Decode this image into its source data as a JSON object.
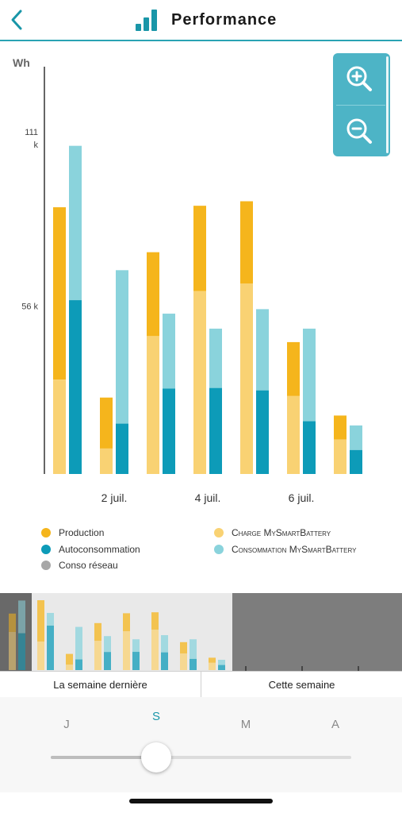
{
  "header": {
    "title": "Performance"
  },
  "colors": {
    "production": "#f5b51c",
    "charge": "#f9d273",
    "autoconsommation": "#0d9bb8",
    "consommation": "#8ad3dc",
    "reseau": "#a7a7a7",
    "accent": "#2aa3b3"
  },
  "chart_data": {
    "type": "bar",
    "stacked": true,
    "unit_label": "Wh",
    "y_ticks": [
      {
        "value": 56000,
        "label": "56 k"
      },
      {
        "value": 111000,
        "label": "111\nk"
      }
    ],
    "ylim": [
      0,
      111000
    ],
    "x_tick_labels": [
      {
        "index": 1,
        "label": "2 juil."
      },
      {
        "index": 3,
        "label": "4 juil."
      },
      {
        "index": 5,
        "label": "6 juil."
      }
    ],
    "days": [
      {
        "production": 89000,
        "charge": 31500,
        "conso_total": 109500,
        "autoconsommation": 58000
      },
      {
        "production": 25500,
        "charge": 8500,
        "conso_total": 68000,
        "autoconsommation": 16800
      },
      {
        "production": 74000,
        "charge": 46000,
        "conso_total": 53500,
        "autoconsommation": 28500
      },
      {
        "production": 89500,
        "charge": 61000,
        "conso_total": 48500,
        "autoconsommation": 28700
      },
      {
        "production": 91000,
        "charge": 63500,
        "conso_total": 55000,
        "autoconsommation": 27900
      },
      {
        "production": 44000,
        "charge": 26000,
        "conso_total": 48500,
        "autoconsommation": 17600
      },
      {
        "production": 19500,
        "charge": 11500,
        "conso_total": 16200,
        "autoconsommation": 8000
      }
    ],
    "legend": [
      {
        "key": "production",
        "label": "Production"
      },
      {
        "key": "charge",
        "label": "Charge MySmartBattery"
      },
      {
        "key": "autoconsommation",
        "label": "Autoconsommation"
      },
      {
        "key": "consommation",
        "label": "Consommation MySmartBattery"
      },
      {
        "key": "reseau",
        "label": "Conso réseau"
      }
    ]
  },
  "navigator": {
    "selected_range": [
      0,
      7
    ],
    "days": [
      {
        "production": 89000,
        "charge": 60000,
        "conso_total": 109500,
        "autoconsommation": 58000
      },
      {
        "production": 110000,
        "charge": 45000,
        "conso_total": 90000,
        "autoconsommation": 70000
      },
      {
        "production": 25500,
        "charge": 8500,
        "conso_total": 68000,
        "autoconsommation": 16800
      },
      {
        "production": 74000,
        "charge": 46000,
        "conso_total": 53500,
        "autoconsommation": 28500
      },
      {
        "production": 89500,
        "charge": 61000,
        "conso_total": 48500,
        "autoconsommation": 28700
      },
      {
        "production": 91000,
        "charge": 63500,
        "conso_total": 55000,
        "autoconsommation": 27900
      },
      {
        "production": 44000,
        "charge": 26000,
        "conso_total": 48500,
        "autoconsommation": 17600
      },
      {
        "production": 19500,
        "charge": 11500,
        "conso_total": 16200,
        "autoconsommation": 8000
      }
    ]
  },
  "legend": {
    "production": "Production",
    "charge": "Charge MySmartBattery",
    "autoconsommation": "Autoconsommation",
    "consommation": "Consommation MySmartBattery",
    "reseau": "Conso réseau"
  },
  "week_tabs": {
    "last_week": "La semaine dernière",
    "this_week": "Cette semaine"
  },
  "period": {
    "options": [
      "J",
      "S",
      "M",
      "A"
    ],
    "selected": "S",
    "slider_value": 0.35
  }
}
